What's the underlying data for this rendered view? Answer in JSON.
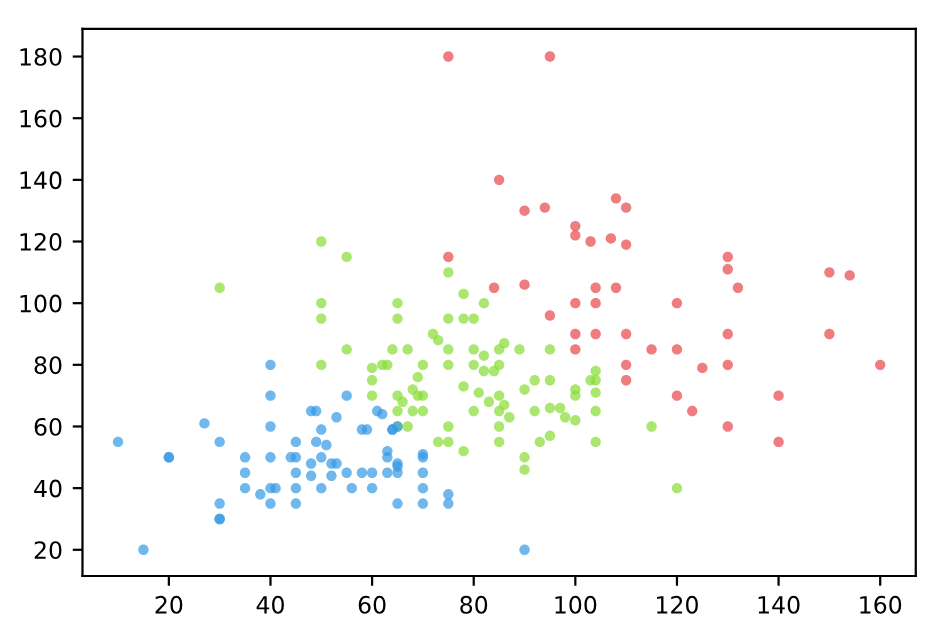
{
  "chart_data": {
    "type": "scatter",
    "xlim": [
      3,
      167
    ],
    "ylim": [
      11.5,
      189
    ],
    "xticks": [
      20,
      40,
      60,
      80,
      100,
      120,
      140,
      160
    ],
    "yticks": [
      20,
      40,
      60,
      80,
      100,
      120,
      140,
      160,
      180
    ],
    "grid": false,
    "legend": false,
    "marker": "circle",
    "series": [
      {
        "color": "#e8464a",
        "x": [
          75,
          95,
          85,
          90,
          94,
          108,
          110,
          100,
          100,
          103,
          107,
          110,
          75,
          130,
          130,
          150,
          154,
          84,
          90,
          104,
          108,
          132,
          95,
          100,
          104,
          120,
          100,
          104,
          110,
          130,
          150,
          100,
          115,
          120,
          110,
          125,
          130,
          160,
          110,
          120,
          140,
          123,
          130,
          140
        ],
        "values": [
          180,
          180,
          140,
          130,
          131,
          134,
          131,
          125,
          122,
          120,
          121,
          119,
          115,
          115,
          111,
          110,
          109,
          105,
          106,
          105,
          105,
          105,
          96,
          100,
          100,
          100,
          90,
          90,
          90,
          90,
          90,
          85,
          85,
          85,
          80,
          79,
          80,
          80,
          75,
          70,
          70,
          65,
          60,
          55
        ]
      },
      {
        "color": "#88dd33",
        "x": [
          75,
          78,
          82,
          75,
          78,
          80,
          72,
          73,
          86,
          85,
          89,
          95,
          80,
          75,
          82,
          75,
          80,
          82,
          84,
          85,
          70,
          95,
          92,
          104,
          104,
          103,
          78,
          90,
          68,
          69,
          81,
          85,
          100,
          100,
          104,
          83,
          86,
          70,
          80,
          85,
          92,
          95,
          97,
          87,
          98,
          100,
          104,
          67,
          75,
          85,
          115,
          73,
          75,
          85,
          93,
          95,
          104,
          78,
          90,
          90,
          50,
          55,
          50,
          65,
          50,
          65,
          55,
          64,
          67,
          50,
          60,
          62,
          63,
          60,
          60,
          65,
          69,
          66,
          70,
          65,
          68,
          65,
          30,
          120
        ],
        "values": [
          110,
          103,
          100,
          95,
          95,
          95,
          90,
          88,
          87,
          85,
          85,
          85,
          85,
          85,
          83,
          80,
          80,
          78,
          78,
          80,
          80,
          75,
          75,
          78,
          75,
          75,
          73,
          72,
          72,
          70,
          71,
          70,
          72,
          70,
          71,
          68,
          67,
          65,
          65,
          65,
          65,
          66,
          66,
          63,
          63,
          62,
          65,
          60,
          60,
          60,
          60,
          55,
          55,
          55,
          55,
          57,
          55,
          52,
          50,
          46,
          120,
          115,
          100,
          100,
          95,
          95,
          85,
          85,
          85,
          80,
          79,
          80,
          80,
          75,
          70,
          70,
          76,
          68,
          70,
          65,
          65,
          60,
          105,
          40
        ]
      },
      {
        "color": "#3399e6",
        "x": [
          10,
          15,
          20,
          20,
          27,
          30,
          30,
          30,
          30,
          35,
          35,
          35,
          38,
          40,
          40,
          40,
          40,
          40,
          41,
          40,
          45,
          45,
          44,
          45,
          45,
          45,
          48,
          49,
          50,
          49,
          51,
          50,
          48,
          52,
          53,
          48,
          52,
          50,
          53,
          55,
          55,
          56,
          58,
          59,
          58,
          60,
          60,
          61,
          63,
          64,
          63,
          65,
          65,
          65,
          70,
          70,
          70,
          70,
          75,
          75,
          90,
          62,
          64,
          65,
          70,
          63,
          65
        ],
        "values": [
          55,
          20,
          50,
          50,
          61,
          55,
          35,
          30,
          30,
          50,
          45,
          40,
          38,
          80,
          70,
          60,
          50,
          40,
          40,
          35,
          55,
          50,
          50,
          45,
          40,
          35,
          65,
          65,
          59,
          55,
          54,
          50,
          48,
          48,
          48,
          44,
          44,
          40,
          63,
          70,
          45,
          40,
          59,
          59,
          45,
          45,
          40,
          65,
          52,
          59,
          45,
          48,
          45,
          35,
          50,
          45,
          40,
          35,
          38,
          35,
          20,
          64,
          59,
          60,
          51,
          50,
          47
        ]
      }
    ]
  }
}
